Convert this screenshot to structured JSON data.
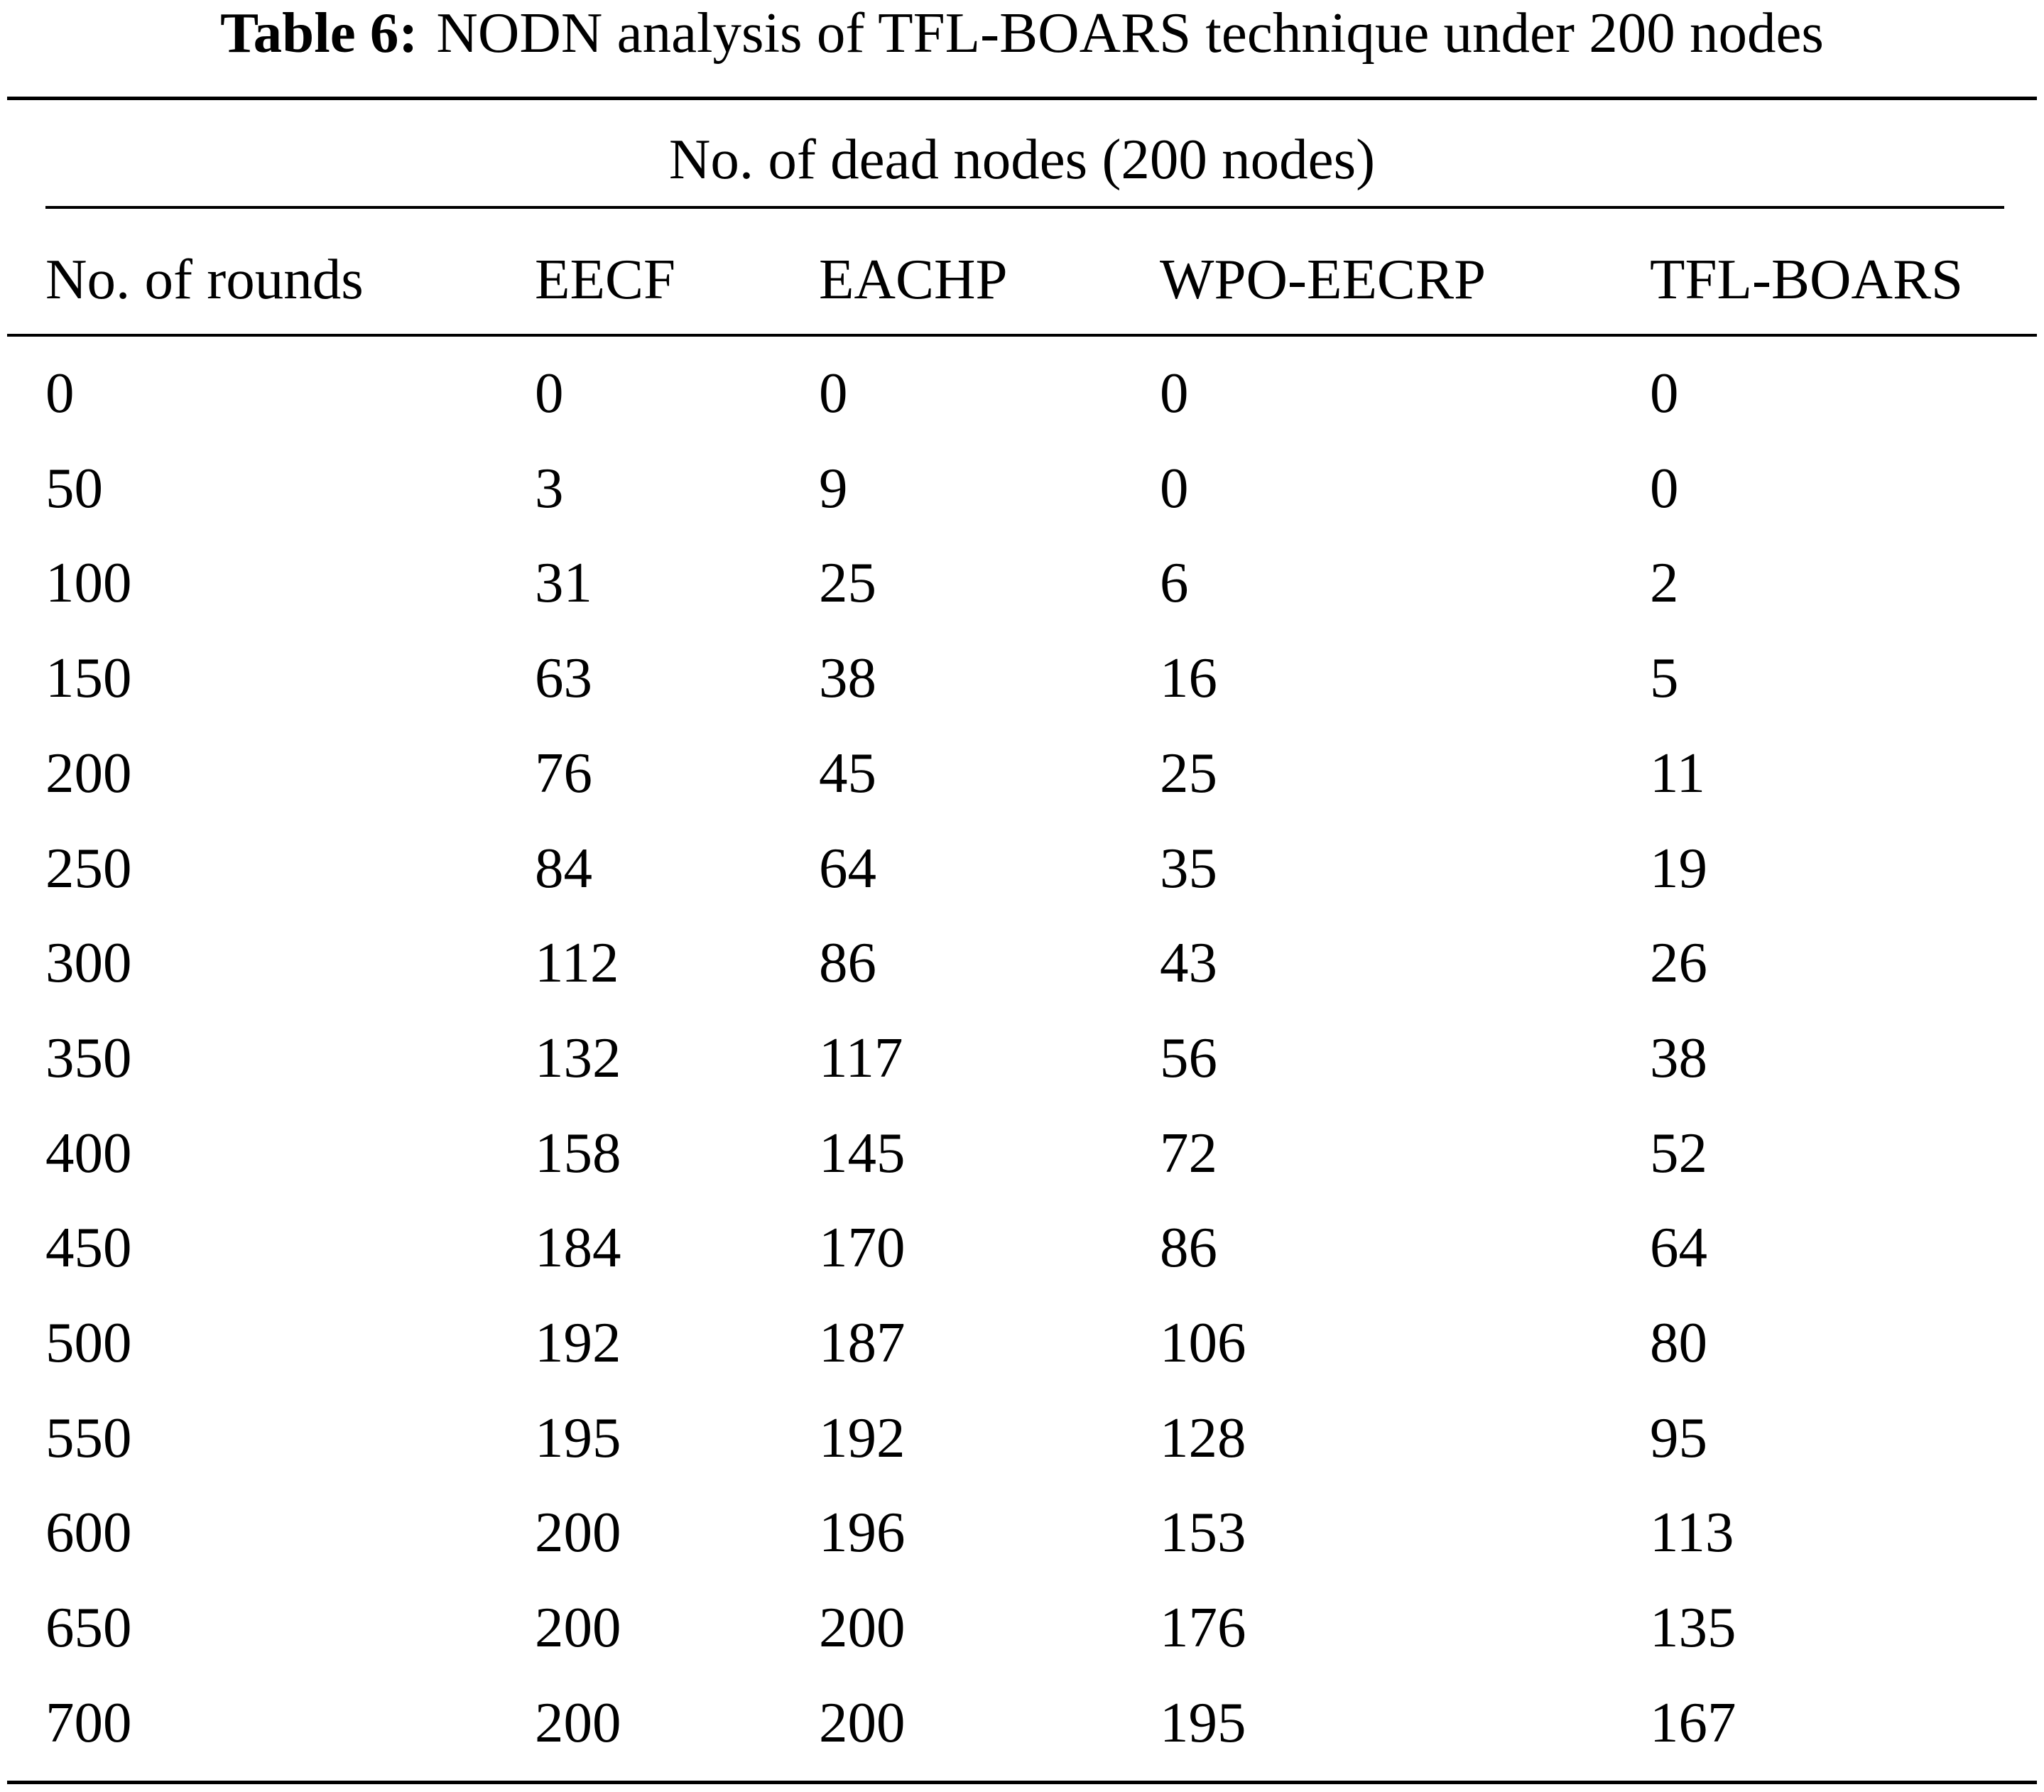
{
  "table": {
    "caption_label": "Table 6:",
    "caption_text": "NODN analysis of TFL-BOARS technique under 200 nodes",
    "group_header": "No. of dead nodes (200 nodes)",
    "columns": [
      "No. of rounds",
      "EECF",
      "EACHP",
      "WPO-EECRP",
      "TFL-BOARS"
    ],
    "rows": [
      [
        "0",
        "0",
        "0",
        "0",
        "0"
      ],
      [
        "50",
        "3",
        "9",
        "0",
        "0"
      ],
      [
        "100",
        "31",
        "25",
        "6",
        "2"
      ],
      [
        "150",
        "63",
        "38",
        "16",
        "5"
      ],
      [
        "200",
        "76",
        "45",
        "25",
        "11"
      ],
      [
        "250",
        "84",
        "64",
        "35",
        "19"
      ],
      [
        "300",
        "112",
        "86",
        "43",
        "26"
      ],
      [
        "350",
        "132",
        "117",
        "56",
        "38"
      ],
      [
        "400",
        "158",
        "145",
        "72",
        "52"
      ],
      [
        "450",
        "184",
        "170",
        "86",
        "64"
      ],
      [
        "500",
        "192",
        "187",
        "106",
        "80"
      ],
      [
        "550",
        "195",
        "192",
        "128",
        "95"
      ],
      [
        "600",
        "200",
        "196",
        "153",
        "113"
      ],
      [
        "650",
        "200",
        "200",
        "176",
        "135"
      ],
      [
        "700",
        "200",
        "200",
        "195",
        "167"
      ]
    ]
  }
}
